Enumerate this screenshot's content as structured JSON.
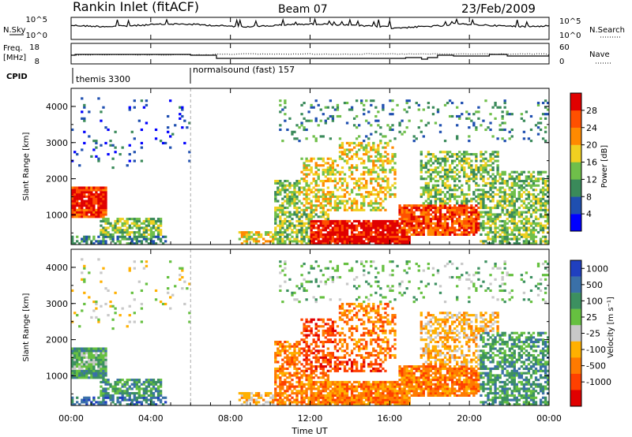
{
  "header": {
    "station": "Rankin Inlet (fitACF)",
    "beam": "Beam 07",
    "date": "23/Feb/2009"
  },
  "aux": {
    "nsky_label": "N.Sky",
    "nsearch_label": "N.Search",
    "nsky_ticks": [
      "10^5",
      "10^0"
    ],
    "freq_label": "Freq.",
    "freq_unit": "[MHz]",
    "freq_ticks": [
      "18",
      "8"
    ],
    "nave_label": "Nave",
    "nave_ticks": [
      "60",
      "0"
    ],
    "cpid_label": "CPID",
    "cpid": [
      {
        "name": "themis 3300",
        "start": 0
      },
      {
        "name": "normalsound (fast) 157",
        "start": 6.0
      }
    ]
  },
  "chart_data": [
    {
      "type": "heatmap",
      "title": "",
      "xlabel": "Time UT",
      "ylabel": "Slant Range [km]",
      "xlim": [
        0,
        24
      ],
      "ylim": [
        180,
        4500
      ],
      "xticks": [
        "00:00",
        "04:00",
        "08:00",
        "12:00",
        "16:00",
        "20:00",
        "00:00"
      ],
      "yticks": [
        "1000",
        "2000",
        "3000",
        "4000"
      ],
      "colorbar": {
        "label": "Power [dB]",
        "ticks": [
          "4",
          "8",
          "12",
          "16",
          "20",
          "24",
          "28"
        ],
        "colors": [
          "#0000ff",
          "#1f4fb0",
          "#3a8a5a",
          "#6fbf4a",
          "#f0d020",
          "#ff8a00",
          "#ff5000",
          "#e00000"
        ]
      },
      "features": [
        {
          "region": "00:00-01:50",
          "range_km": [
            900,
            1800
          ],
          "level_db": 24
        },
        {
          "region": "01:30-04:30",
          "range_km": [
            200,
            900
          ],
          "level_db": 10
        },
        {
          "region": "10:30-24:00",
          "range_km": [
            200,
            3800
          ],
          "level_db": 16
        },
        {
          "region": "14:00-16:30",
          "range_km": [
            200,
            800
          ],
          "level_db": 28
        }
      ]
    },
    {
      "type": "heatmap",
      "title": "",
      "xlabel": "Time UT",
      "ylabel": "Slant Range [km]",
      "xlim": [
        0,
        24
      ],
      "ylim": [
        180,
        4500
      ],
      "xticks": [
        "00:00",
        "04:00",
        "08:00",
        "12:00",
        "16:00",
        "20:00",
        "00:00"
      ],
      "yticks": [
        "1000",
        "2000",
        "3000",
        "4000"
      ],
      "colorbar": {
        "label": "Velocity [m s⁻¹]",
        "ticks": [
          "1000",
          "500",
          "100",
          "25",
          "-25",
          "-100",
          "-500",
          "-1000"
        ],
        "colors": [
          "#2040c0",
          "#3a70a8",
          "#3c9060",
          "#66c040",
          "#c8c8c8",
          "#ffb000",
          "#ff7a00",
          "#ff4000",
          "#e00000"
        ]
      },
      "features": [
        {
          "region": "00:00-01:50",
          "range_km": [
            600,
            1800
          ],
          "velocity": 100
        },
        {
          "region": "10:30-20:00",
          "range_km": [
            200,
            3000
          ],
          "velocity": -500
        },
        {
          "region": "20:00-24:00",
          "range_km": [
            200,
            2200
          ],
          "velocity": 100
        }
      ]
    }
  ]
}
